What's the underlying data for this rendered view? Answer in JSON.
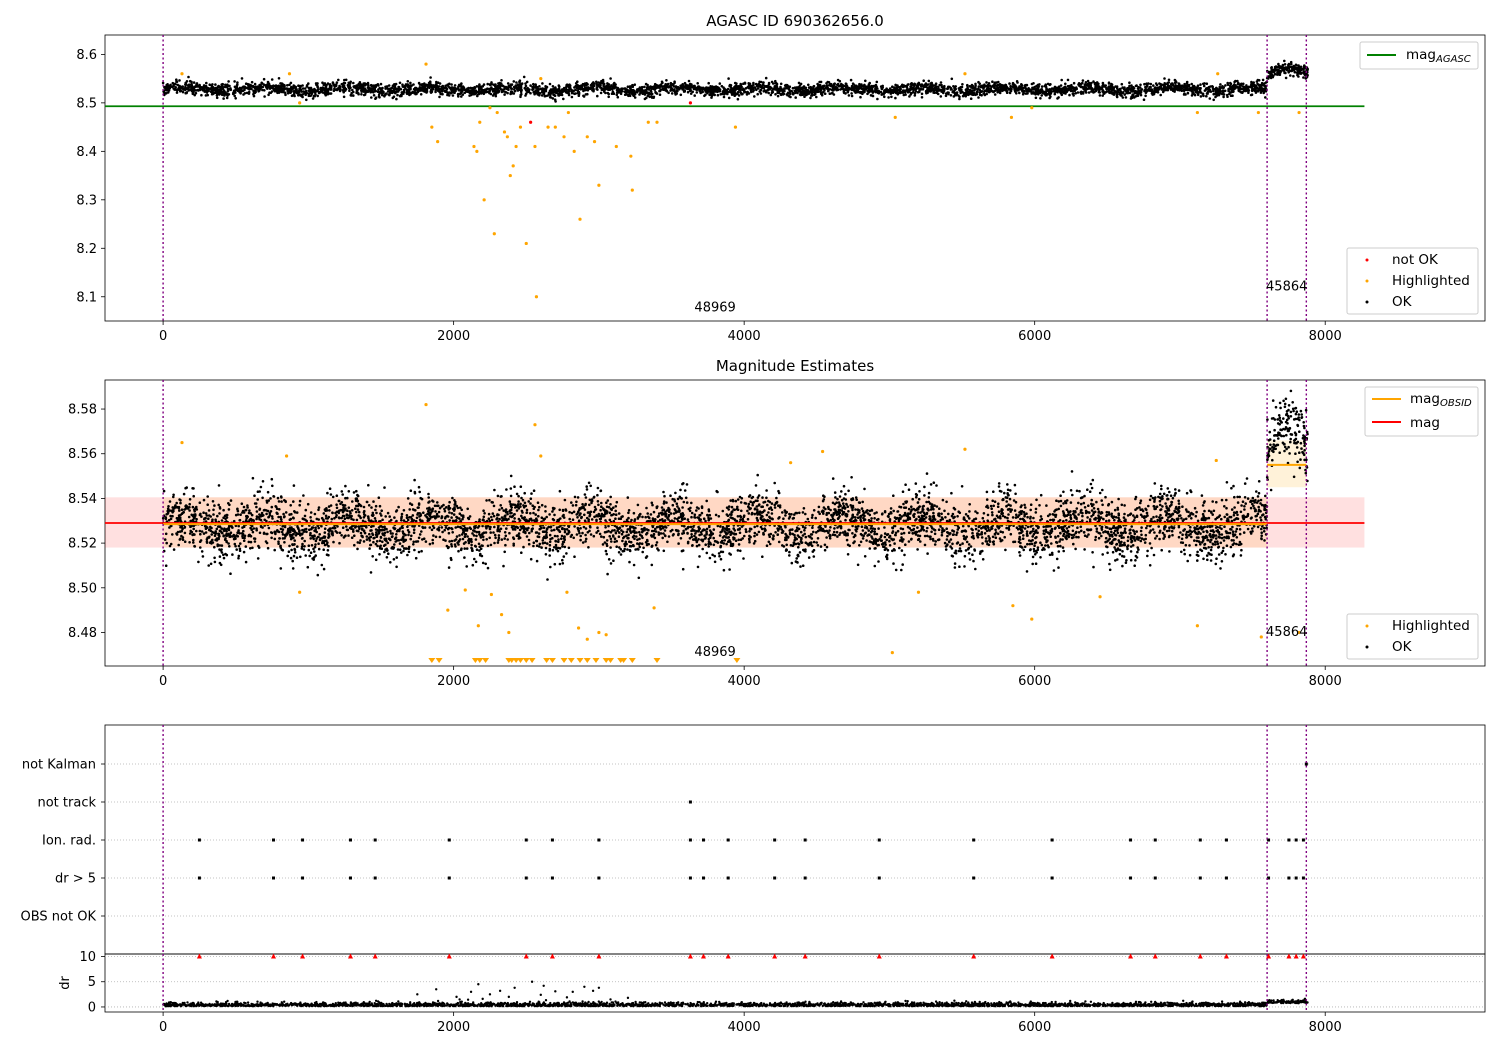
{
  "chart_data": [
    {
      "type": "scatter",
      "title": "AGASC ID 690362656.0",
      "xlim": [
        -400,
        9100
      ],
      "ylim": [
        8.05,
        8.64
      ],
      "xticks": [
        0,
        2000,
        4000,
        6000,
        8000
      ],
      "yticks": [
        8.1,
        8.2,
        8.3,
        8.4,
        8.5,
        8.6
      ],
      "xtick_labels": [
        "0",
        "2000",
        "4000",
        "6000",
        "8000"
      ],
      "ytick_labels": [
        "8.1",
        "8.2",
        "8.3",
        "8.4",
        "8.5",
        "8.6"
      ],
      "obs_boundaries": [
        0,
        7600,
        7870
      ],
      "obs_labels": [
        {
          "text": "48969",
          "x": 3800,
          "y": 8.07
        },
        {
          "text": "45864",
          "x": 7735,
          "y": 8.113
        }
      ],
      "hlines": [
        {
          "name": "mag_AGASC",
          "y": 8.493,
          "x0": -400,
          "x1": 8270,
          "color": "#008000"
        }
      ],
      "ok_band": {
        "x0": 0,
        "x1": 7880,
        "base": 8.528,
        "spread": 0.012,
        "x_break": 7600,
        "base2": 8.56
      },
      "highlighted": [
        [
          130,
          8.56
        ],
        [
          870,
          8.56
        ],
        [
          940,
          8.5
        ],
        [
          1810,
          8.58
        ],
        [
          1850,
          8.45
        ],
        [
          1890,
          8.42
        ],
        [
          2140,
          8.41
        ],
        [
          2160,
          8.4
        ],
        [
          2180,
          8.46
        ],
        [
          2210,
          8.3
        ],
        [
          2250,
          8.49
        ],
        [
          2280,
          8.23
        ],
        [
          2300,
          8.48
        ],
        [
          2350,
          8.44
        ],
        [
          2370,
          8.43
        ],
        [
          2390,
          8.35
        ],
        [
          2410,
          8.37
        ],
        [
          2430,
          8.41
        ],
        [
          2460,
          8.45
        ],
        [
          2500,
          8.21
        ],
        [
          2560,
          8.41
        ],
        [
          2570,
          8.1
        ],
        [
          2600,
          8.55
        ],
        [
          2650,
          8.45
        ],
        [
          2700,
          8.45
        ],
        [
          2760,
          8.43
        ],
        [
          2790,
          8.48
        ],
        [
          2830,
          8.4
        ],
        [
          2870,
          8.26
        ],
        [
          2920,
          8.43
        ],
        [
          2970,
          8.42
        ],
        [
          3000,
          8.33
        ],
        [
          3120,
          8.41
        ],
        [
          3220,
          8.39
        ],
        [
          3230,
          8.32
        ],
        [
          3340,
          8.46
        ],
        [
          3400,
          8.46
        ],
        [
          3940,
          8.45
        ],
        [
          5040,
          8.47
        ],
        [
          5520,
          8.56
        ],
        [
          5840,
          8.47
        ],
        [
          5980,
          8.49
        ],
        [
          7120,
          8.48
        ],
        [
          7260,
          8.56
        ],
        [
          7540,
          8.48
        ],
        [
          7820,
          8.48
        ]
      ],
      "not_ok": [
        [
          2530,
          8.46
        ],
        [
          3630,
          8.5
        ]
      ],
      "legend_lines": [
        {
          "name": "mag",
          "subscript": "AGASC",
          "color": "#008000"
        }
      ],
      "legend_points": [
        {
          "name": "not OK",
          "color": "#ff0000"
        },
        {
          "name": "Highlighted",
          "color": "#ffa500"
        },
        {
          "name": "OK",
          "color": "#000000"
        }
      ]
    },
    {
      "type": "scatter",
      "title": "Magnitude Estimates",
      "xlim": [
        -400,
        9100
      ],
      "ylim": [
        8.465,
        8.593
      ],
      "xticks": [
        0,
        2000,
        4000,
        6000,
        8000
      ],
      "yticks": [
        8.48,
        8.5,
        8.52,
        8.54,
        8.56,
        8.58
      ],
      "xtick_labels": [
        "0",
        "2000",
        "4000",
        "6000",
        "8000"
      ],
      "ytick_labels": [
        "8.48",
        "8.50",
        "8.52",
        "8.54",
        "8.56",
        "8.58"
      ],
      "obs_boundaries": [
        0,
        7600,
        7870
      ],
      "obs_labels": [
        {
          "text": "48969",
          "x": 3800,
          "y": 8.4695
        },
        {
          "text": "45864",
          "x": 7735,
          "y": 8.4785
        }
      ],
      "mag": {
        "y": 8.529,
        "x0": -400,
        "x1": 8270,
        "band_low": 8.518,
        "band_high": 8.5405,
        "color": "#ff0000"
      },
      "mag_obsid": [
        {
          "x0": 0,
          "x1": 7600,
          "y": 8.5285
        },
        {
          "x0": 7600,
          "x1": 7870,
          "y": 8.555,
          "band_low": 8.545,
          "band_high": 8.566
        }
      ],
      "ok_band": {
        "x0": 0,
        "x1": 7880,
        "base": 8.528,
        "spread": 0.012,
        "x_break": 7600,
        "base2": 8.56
      },
      "highlighted": [
        [
          130,
          8.565
        ],
        [
          850,
          8.559
        ],
        [
          940,
          8.498
        ],
        [
          1810,
          8.582
        ],
        [
          1960,
          8.49
        ],
        [
          2080,
          8.499
        ],
        [
          2170,
          8.483
        ],
        [
          2260,
          8.497
        ],
        [
          2330,
          8.488
        ],
        [
          2380,
          8.48
        ],
        [
          2560,
          8.573
        ],
        [
          2600,
          8.559
        ],
        [
          2780,
          8.498
        ],
        [
          2860,
          8.482
        ],
        [
          2920,
          8.477
        ],
        [
          3000,
          8.48
        ],
        [
          3050,
          8.479
        ],
        [
          3380,
          8.491
        ],
        [
          4320,
          8.556
        ],
        [
          4540,
          8.561
        ],
        [
          5520,
          8.562
        ],
        [
          5020,
          8.471
        ],
        [
          5200,
          8.498
        ],
        [
          5850,
          8.492
        ],
        [
          5980,
          8.486
        ],
        [
          6450,
          8.496
        ],
        [
          7120,
          8.483
        ],
        [
          7250,
          8.557
        ],
        [
          7560,
          8.478
        ],
        [
          7820,
          8.48
        ]
      ],
      "clipped_x": [
        1850,
        1900,
        2150,
        2180,
        2220,
        2380,
        2400,
        2430,
        2460,
        2500,
        2540,
        2640,
        2680,
        2760,
        2810,
        2870,
        2920,
        2980,
        3050,
        3080,
        3150,
        3170,
        3230,
        3400,
        3950
      ],
      "legend_lines": [
        {
          "name": "mag",
          "subscript": "OBSID",
          "color": "#ffa500"
        },
        {
          "name": "mag",
          "subscript": "",
          "color": "#ff0000"
        }
      ],
      "legend_points": [
        {
          "name": "Highlighted",
          "color": "#ffa500"
        },
        {
          "name": "OK",
          "color": "#000000"
        }
      ]
    },
    {
      "type": "scatter",
      "xlim": [
        -400,
        9100
      ],
      "xticks": [
        0,
        2000,
        4000,
        6000,
        8000
      ],
      "xtick_labels": [
        "0",
        "2000",
        "4000",
        "6000",
        "8000"
      ],
      "obs_boundaries": [
        0,
        7600,
        7870
      ],
      "flag_labels": [
        "not Kalman",
        "not track",
        "Ion. rad.",
        "dr > 5",
        "OBS not OK"
      ],
      "flags": {
        "not Kalman": [
          7870
        ],
        "not track": [
          3630
        ],
        "Ion. rad.": [
          250,
          760,
          960,
          1290,
          1460,
          1970,
          2500,
          2680,
          3000,
          3630,
          3720,
          3890,
          4210,
          4420,
          4930,
          5580,
          6120,
          6660,
          6830,
          7140,
          7320,
          7610,
          7750,
          7800,
          7850
        ],
        "dr > 5": [
          250,
          760,
          960,
          1290,
          1460,
          1970,
          2500,
          2680,
          3000,
          3630,
          3720,
          3890,
          4210,
          4420,
          4930,
          5580,
          6120,
          6660,
          6830,
          7140,
          7320,
          7610,
          7750,
          7800,
          7850
        ],
        "OBS not OK": []
      },
      "dr_ylabel": "dr",
      "dr_yticks": [
        0,
        5,
        10
      ],
      "dr_ytick_labels": [
        "0",
        "5",
        "10"
      ],
      "dr_ylim": [
        -1,
        10.5
      ],
      "dr_clipped_x": [
        250,
        760,
        960,
        1290,
        1460,
        1970,
        2500,
        2680,
        3000,
        3630,
        3720,
        3890,
        4210,
        4420,
        4930,
        5580,
        6120,
        6660,
        6830,
        7140,
        7320,
        7610,
        7750,
        7800,
        7850
      ],
      "dr_outliers": [
        [
          1750,
          2.5
        ],
        [
          1880,
          3.5
        ],
        [
          2020,
          2.0
        ],
        [
          2120,
          3.0
        ],
        [
          2170,
          4.5
        ],
        [
          2250,
          2.5
        ],
        [
          2320,
          3.2
        ],
        [
          2420,
          3.8
        ],
        [
          2540,
          5.0
        ],
        [
          2620,
          4.2
        ],
        [
          2700,
          3.1
        ],
        [
          2820,
          3.0
        ],
        [
          2900,
          4.0
        ],
        [
          2960,
          3.2
        ],
        [
          3000,
          3.8
        ],
        [
          3080,
          1.5
        ],
        [
          3200,
          1.8
        ],
        [
          2200,
          1.6
        ],
        [
          2380,
          2.0
        ],
        [
          2600,
          2.4
        ],
        [
          2780,
          1.9
        ]
      ]
    }
  ]
}
